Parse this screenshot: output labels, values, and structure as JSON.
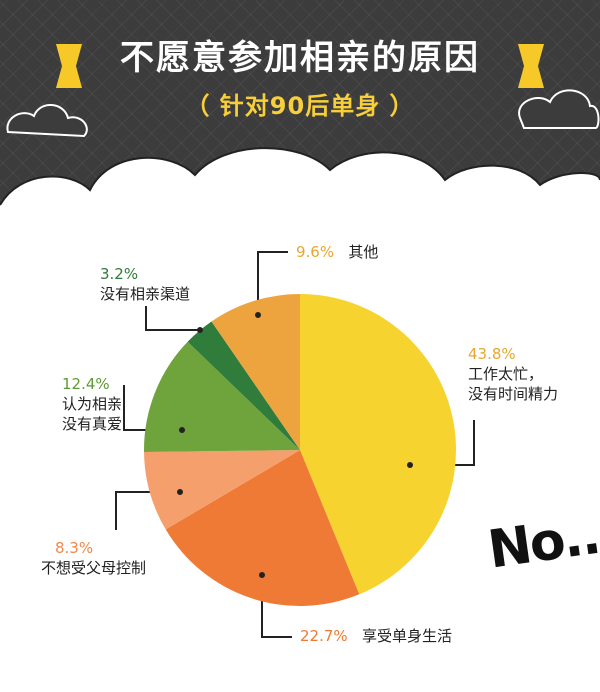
{
  "title": "不愿意参加相亲的原因",
  "subtitle": "（ 针对90后单身 ）",
  "corner_text": "No...",
  "chart_data": {
    "type": "pie",
    "title": "不愿意参加相亲的原因",
    "subtitle": "（ 针对90后单身 ）",
    "slices": [
      {
        "label": "工作太忙，没有时间精力",
        "label_lines": [
          "工作太忙，",
          "没有时间精力"
        ],
        "value": 43.8,
        "pct_text": "43.8%",
        "color": "#f7d330"
      },
      {
        "label": "享受单身生活",
        "label_lines": [
          "享受单身生活"
        ],
        "value": 22.7,
        "pct_text": "22.7%",
        "color": "#ee7a35"
      },
      {
        "label": "不想受父母控制",
        "label_lines": [
          "不想受父母控制"
        ],
        "value": 8.3,
        "pct_text": "8.3%",
        "color": "#f5a06c"
      },
      {
        "label": "认为相亲没有真爱",
        "label_lines": [
          "认为相亲",
          "没有真爱"
        ],
        "value": 12.4,
        "pct_text": "12.4%",
        "color": "#6fa43c"
      },
      {
        "label": "没有相亲渠道",
        "label_lines": [
          "没有相亲渠道"
        ],
        "value": 3.2,
        "pct_text": "3.2%",
        "color": "#2f7c3b"
      },
      {
        "label": "其他",
        "label_lines": [
          "其他"
        ],
        "value": 9.6,
        "pct_text": "9.6%",
        "color": "#eda33e"
      }
    ]
  }
}
